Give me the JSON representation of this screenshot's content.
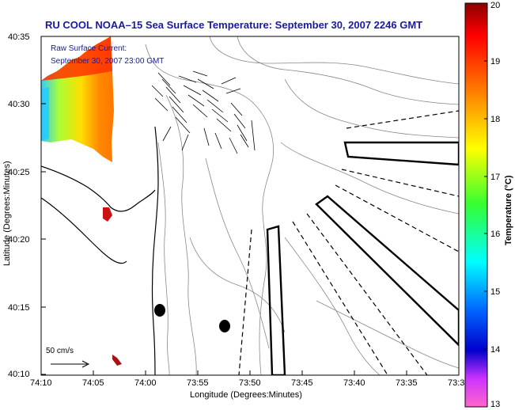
{
  "title": "RU COOL  NOAA–15  Sea Surface Temperature:  September 30, 2007 2246 GMT",
  "current_legend": {
    "line1": "Raw Surface Current:",
    "line2": "September 30, 2007 23:00 GMT",
    "scale_label": "50 cm/s"
  },
  "axes": {
    "xlabel": "Longitude (Degrees:Minutes)",
    "ylabel": "Latitude (Degrees:Minutes)",
    "x_ticks": [
      "74:10",
      "74:05",
      "74:00",
      "73:55",
      "73:50",
      "73:45",
      "73:40",
      "73:35",
      "73:3"
    ],
    "y_ticks": [
      "40:35",
      "40:30",
      "40:25",
      "40:20",
      "40:15",
      "40:10"
    ]
  },
  "colorbar": {
    "label": "Temperature (°C)",
    "min": 13,
    "max": 20,
    "ticks": [
      "20",
      "19",
      "18",
      "17",
      "16",
      "15",
      "14",
      "13"
    ]
  },
  "colors": {
    "title": "#1a1aa0",
    "contour": "#888888",
    "coast": "#000000"
  }
}
